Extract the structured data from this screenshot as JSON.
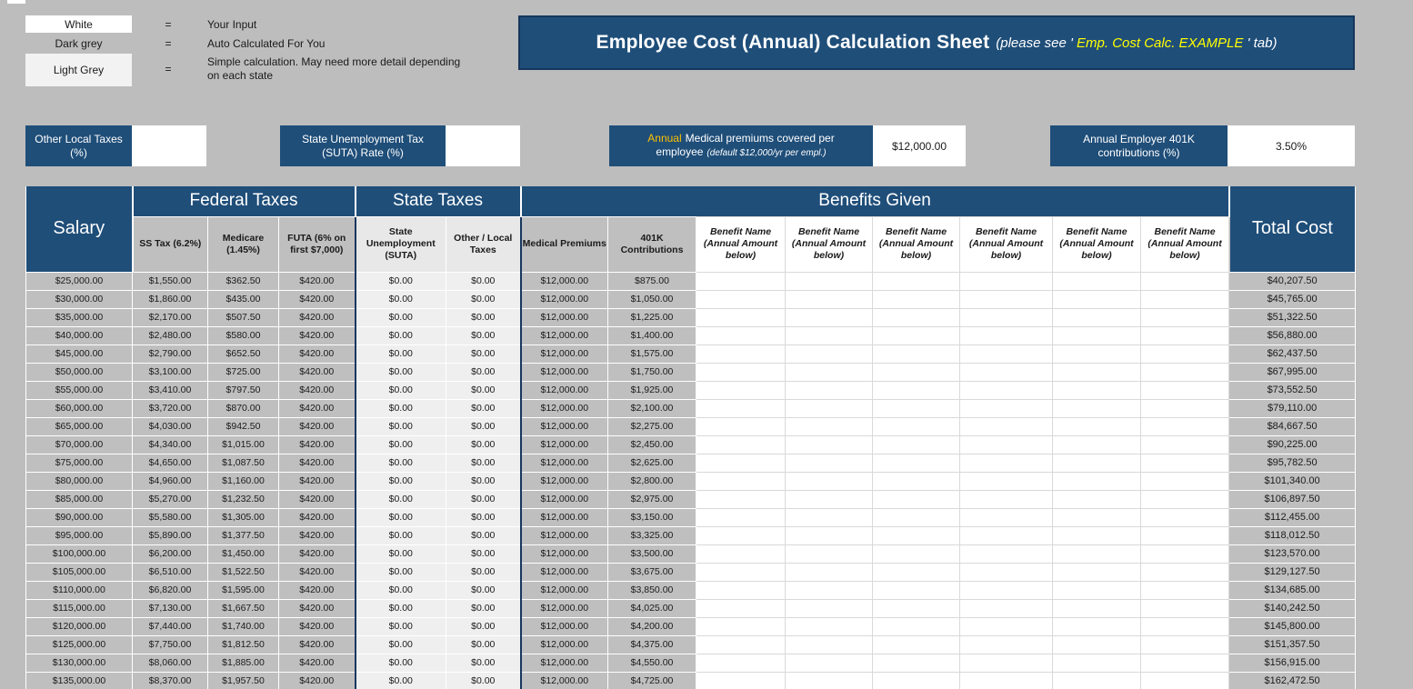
{
  "colors": {
    "navy": "#1f4e79",
    "navy_dark": "#17375e",
    "yellow": "#ffff00",
    "gold": "#ffc000",
    "grey_cell": "#bfbfbf",
    "light_cell": "#efefef",
    "page_bg": "#bdbdbd"
  },
  "legend": {
    "items": [
      {
        "swatch": "White",
        "desc": "Your Input",
        "eq": "="
      },
      {
        "swatch": "Dark grey",
        "desc": "Auto Calculated For You",
        "eq": "="
      },
      {
        "swatch": "Light Grey",
        "desc": "Simple calculation. May need more detail depending on each state",
        "eq": "="
      }
    ]
  },
  "title": {
    "main": "Employee Cost (Annual) Calculation Sheet",
    "note_prefix": "(please see ' ",
    "note_link": "Emp. Cost Calc. EXAMPLE",
    "note_suffix": " ' tab)"
  },
  "inputs": [
    {
      "label": "Other Local Taxes (%)",
      "value": ""
    },
    {
      "label": "State Unemployment Tax (SUTA) Rate (%)",
      "value": ""
    },
    {
      "label_highlight": "Annual",
      "label": "Medical premiums covered per employee",
      "label_note": "(default $12,000/yr per empl.)",
      "value": "$12,000.00"
    },
    {
      "label": "Annual Employer 401K contributions (%)",
      "value": "3.50%"
    }
  ],
  "table": {
    "groups": {
      "salary": "Salary",
      "federal": "Federal Taxes",
      "state": "State Taxes",
      "benefits": "Benefits Given",
      "total": "Total Cost"
    },
    "sub": {
      "ss": "SS Tax (6.2%)",
      "medicare": "Medicare (1.45%)",
      "futa": "FUTA (6% on first $7,000)",
      "suta": "State Unemployment (SUTA)",
      "local": "Other / Local Taxes",
      "medical": "Medical Premiums",
      "k401": "401K Contributions",
      "benefit": "Benefit Name (Annual Amount below)"
    },
    "rows": [
      [
        "$25,000.00",
        "$1,550.00",
        "$362.50",
        "$420.00",
        "$0.00",
        "$0.00",
        "$12,000.00",
        "$875.00",
        "",
        "",
        "",
        "",
        "",
        "",
        "$40,207.50"
      ],
      [
        "$30,000.00",
        "$1,860.00",
        "$435.00",
        "$420.00",
        "$0.00",
        "$0.00",
        "$12,000.00",
        "$1,050.00",
        "",
        "",
        "",
        "",
        "",
        "",
        "$45,765.00"
      ],
      [
        "$35,000.00",
        "$2,170.00",
        "$507.50",
        "$420.00",
        "$0.00",
        "$0.00",
        "$12,000.00",
        "$1,225.00",
        "",
        "",
        "",
        "",
        "",
        "",
        "$51,322.50"
      ],
      [
        "$40,000.00",
        "$2,480.00",
        "$580.00",
        "$420.00",
        "$0.00",
        "$0.00",
        "$12,000.00",
        "$1,400.00",
        "",
        "",
        "",
        "",
        "",
        "",
        "$56,880.00"
      ],
      [
        "$45,000.00",
        "$2,790.00",
        "$652.50",
        "$420.00",
        "$0.00",
        "$0.00",
        "$12,000.00",
        "$1,575.00",
        "",
        "",
        "",
        "",
        "",
        "",
        "$62,437.50"
      ],
      [
        "$50,000.00",
        "$3,100.00",
        "$725.00",
        "$420.00",
        "$0.00",
        "$0.00",
        "$12,000.00",
        "$1,750.00",
        "",
        "",
        "",
        "",
        "",
        "",
        "$67,995.00"
      ],
      [
        "$55,000.00",
        "$3,410.00",
        "$797.50",
        "$420.00",
        "$0.00",
        "$0.00",
        "$12,000.00",
        "$1,925.00",
        "",
        "",
        "",
        "",
        "",
        "",
        "$73,552.50"
      ],
      [
        "$60,000.00",
        "$3,720.00",
        "$870.00",
        "$420.00",
        "$0.00",
        "$0.00",
        "$12,000.00",
        "$2,100.00",
        "",
        "",
        "",
        "",
        "",
        "",
        "$79,110.00"
      ],
      [
        "$65,000.00",
        "$4,030.00",
        "$942.50",
        "$420.00",
        "$0.00",
        "$0.00",
        "$12,000.00",
        "$2,275.00",
        "",
        "",
        "",
        "",
        "",
        "",
        "$84,667.50"
      ],
      [
        "$70,000.00",
        "$4,340.00",
        "$1,015.00",
        "$420.00",
        "$0.00",
        "$0.00",
        "$12,000.00",
        "$2,450.00",
        "",
        "",
        "",
        "",
        "",
        "",
        "$90,225.00"
      ],
      [
        "$75,000.00",
        "$4,650.00",
        "$1,087.50",
        "$420.00",
        "$0.00",
        "$0.00",
        "$12,000.00",
        "$2,625.00",
        "",
        "",
        "",
        "",
        "",
        "",
        "$95,782.50"
      ],
      [
        "$80,000.00",
        "$4,960.00",
        "$1,160.00",
        "$420.00",
        "$0.00",
        "$0.00",
        "$12,000.00",
        "$2,800.00",
        "",
        "",
        "",
        "",
        "",
        "",
        "$101,340.00"
      ],
      [
        "$85,000.00",
        "$5,270.00",
        "$1,232.50",
        "$420.00",
        "$0.00",
        "$0.00",
        "$12,000.00",
        "$2,975.00",
        "",
        "",
        "",
        "",
        "",
        "",
        "$106,897.50"
      ],
      [
        "$90,000.00",
        "$5,580.00",
        "$1,305.00",
        "$420.00",
        "$0.00",
        "$0.00",
        "$12,000.00",
        "$3,150.00",
        "",
        "",
        "",
        "",
        "",
        "",
        "$112,455.00"
      ],
      [
        "$95,000.00",
        "$5,890.00",
        "$1,377.50",
        "$420.00",
        "$0.00",
        "$0.00",
        "$12,000.00",
        "$3,325.00",
        "",
        "",
        "",
        "",
        "",
        "",
        "$118,012.50"
      ],
      [
        "$100,000.00",
        "$6,200.00",
        "$1,450.00",
        "$420.00",
        "$0.00",
        "$0.00",
        "$12,000.00",
        "$3,500.00",
        "",
        "",
        "",
        "",
        "",
        "",
        "$123,570.00"
      ],
      [
        "$105,000.00",
        "$6,510.00",
        "$1,522.50",
        "$420.00",
        "$0.00",
        "$0.00",
        "$12,000.00",
        "$3,675.00",
        "",
        "",
        "",
        "",
        "",
        "",
        "$129,127.50"
      ],
      [
        "$110,000.00",
        "$6,820.00",
        "$1,595.00",
        "$420.00",
        "$0.00",
        "$0.00",
        "$12,000.00",
        "$3,850.00",
        "",
        "",
        "",
        "",
        "",
        "",
        "$134,685.00"
      ],
      [
        "$115,000.00",
        "$7,130.00",
        "$1,667.50",
        "$420.00",
        "$0.00",
        "$0.00",
        "$12,000.00",
        "$4,025.00",
        "",
        "",
        "",
        "",
        "",
        "",
        "$140,242.50"
      ],
      [
        "$120,000.00",
        "$7,440.00",
        "$1,740.00",
        "$420.00",
        "$0.00",
        "$0.00",
        "$12,000.00",
        "$4,200.00",
        "",
        "",
        "",
        "",
        "",
        "",
        "$145,800.00"
      ],
      [
        "$125,000.00",
        "$7,750.00",
        "$1,812.50",
        "$420.00",
        "$0.00",
        "$0.00",
        "$12,000.00",
        "$4,375.00",
        "",
        "",
        "",
        "",
        "",
        "",
        "$151,357.50"
      ],
      [
        "$130,000.00",
        "$8,060.00",
        "$1,885.00",
        "$420.00",
        "$0.00",
        "$0.00",
        "$12,000.00",
        "$4,550.00",
        "",
        "",
        "",
        "",
        "",
        "",
        "$156,915.00"
      ],
      [
        "$135,000.00",
        "$8,370.00",
        "$1,957.50",
        "$420.00",
        "$0.00",
        "$0.00",
        "$12,000.00",
        "$4,725.00",
        "",
        "",
        "",
        "",
        "",
        "",
        "$162,472.50"
      ]
    ]
  }
}
